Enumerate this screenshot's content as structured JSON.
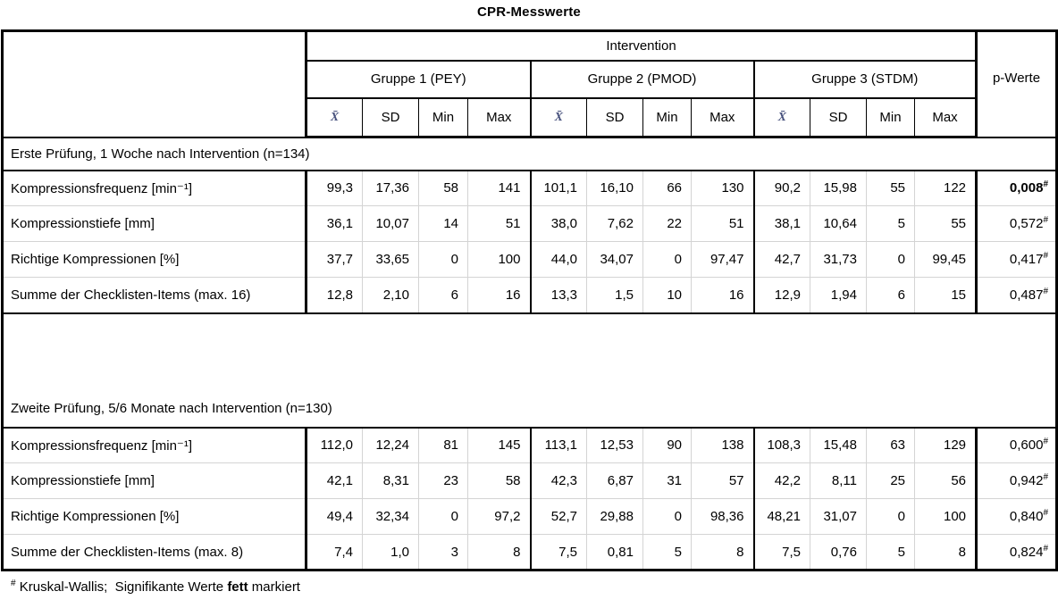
{
  "title": "CPR-Messwerte",
  "table": {
    "p_marker": "#",
    "header": {
      "intervention_label": "Intervention",
      "groups": [
        "Gruppe 1 (PEY)",
        "Gruppe 2 (PMOD)",
        "Gruppe 3 (STDM)"
      ],
      "stat_columns": [
        "X̄",
        "SD",
        "Min",
        "Max"
      ],
      "p_label": "p-Werte"
    },
    "sections": [
      {
        "label": "Erste Prüfung, 1 Woche nach Intervention (n=134)",
        "tall": false,
        "rows": [
          {
            "label": "Kompressionsfrequenz [min⁻¹]",
            "values": [
              "99,3",
              "17,36",
              "58",
              "141",
              "101,1",
              "16,10",
              "66",
              "130",
              "90,2",
              "15,98",
              "55",
              "122"
            ],
            "p": "0,008",
            "p_bold": true
          },
          {
            "label": "Kompressionstiefe [mm]",
            "values": [
              "36,1",
              "10,07",
              "14",
              "51",
              "38,0",
              "7,62",
              "22",
              "51",
              "38,1",
              "10,64",
              "5",
              "55"
            ],
            "p": "0,572",
            "p_bold": false
          },
          {
            "label": "Richtige Kompressionen [%]",
            "values": [
              "37,7",
              "33,65",
              "0",
              "100",
              "44,0",
              "34,07",
              "0",
              "97,47",
              "42,7",
              "31,73",
              "0",
              "99,45"
            ],
            "p": "0,417",
            "p_bold": false
          },
          {
            "label": "Summe der Checklisten-Items (max. 16)",
            "values": [
              "12,8",
              "2,10",
              "6",
              "16",
              "13,3",
              "1,5",
              "10",
              "16",
              "12,9",
              "1,94",
              "6",
              "15"
            ],
            "p": "0,487",
            "p_bold": false
          }
        ]
      },
      {
        "label": "Zweite Prüfung, 5/6 Monate nach Intervention (n=130)",
        "tall": true,
        "rows": [
          {
            "label": "Kompressionsfrequenz [min⁻¹]",
            "values": [
              "112,0",
              "12,24",
              "81",
              "145",
              "113,1",
              "12,53",
              "90",
              "138",
              "108,3",
              "15,48",
              "63",
              "129"
            ],
            "p": "0,600",
            "p_bold": false
          },
          {
            "label": "Kompressionstiefe [mm]",
            "values": [
              "42,1",
              "8,31",
              "23",
              "58",
              "42,3",
              "6,87",
              "31",
              "57",
              "42,2",
              "8,11",
              "25",
              "56"
            ],
            "p": "0,942",
            "p_bold": false
          },
          {
            "label": "Richtige Kompressionen [%]",
            "values": [
              "49,4",
              "32,34",
              "0",
              "97,2",
              "52,7",
              "29,88",
              "0",
              "98,36",
              "48,21",
              "31,07",
              "0",
              "100"
            ],
            "p": "0,840",
            "p_bold": false
          },
          {
            "label": "Summe der Checklisten-Items (max. 8)",
            "values": [
              "7,4",
              "1,0",
              "3",
              "8",
              "7,5",
              "0,81",
              "5",
              "8",
              "7,5",
              "0,76",
              "5",
              "8"
            ],
            "p": "0,824",
            "p_bold": false
          }
        ]
      }
    ]
  },
  "footnote": {
    "marker": "#",
    "text": " Kruskal-Wallis;  Signifikante Werte ",
    "bold_word": "fett",
    "tail": " markiert"
  }
}
